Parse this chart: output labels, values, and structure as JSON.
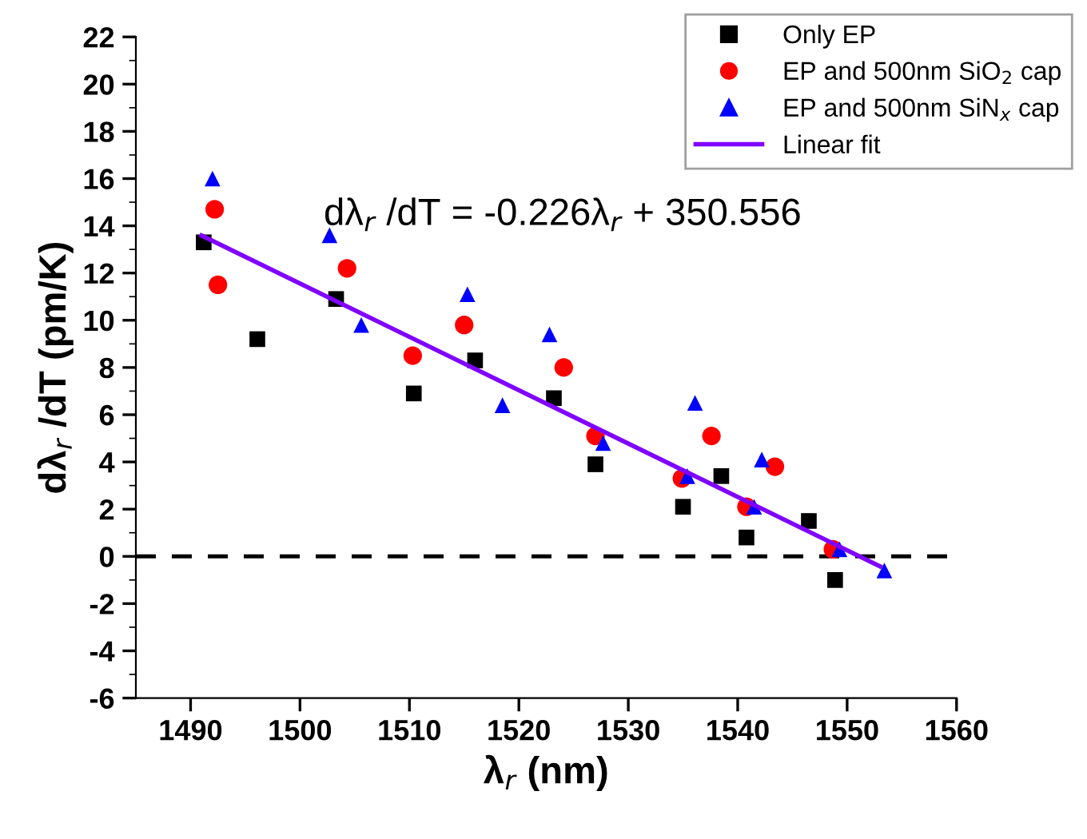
{
  "chart_data": {
    "type": "scatter",
    "xlabel": "λ$_{r}$ (nm)",
    "ylabel": "dλ$_{r}$ /dT (pm/K)",
    "xlim": [
      1485,
      1560
    ],
    "xticks": [
      1490,
      1500,
      1510,
      1520,
      1530,
      1540,
      1550,
      1560
    ],
    "ylim": [
      -6,
      22
    ],
    "yticks": [
      -6,
      -4,
      -2,
      0,
      2,
      4,
      6,
      8,
      10,
      12,
      14,
      16,
      18,
      20,
      22
    ],
    "legend": "top right",
    "grid": false,
    "annotations": [
      "dλ$_{r}$ /dT = -0.226λ$_{r}$ + 350.556"
    ],
    "ref_lines": [
      {
        "axis": "y",
        "value": 0,
        "color": "#000000",
        "line_style": "dashed"
      }
    ],
    "series": [
      {
        "name": "Only EP",
        "color": "#000000",
        "marker": "square",
        "x": [
          1491.2,
          1496.1,
          1503.3,
          1510.4,
          1516.0,
          1523.2,
          1527.0,
          1535.0,
          1538.5,
          1540.8,
          1546.5,
          1548.9
        ],
        "values": [
          13.3,
          9.2,
          10.9,
          6.9,
          8.3,
          6.7,
          3.9,
          2.1,
          3.4,
          0.8,
          1.5,
          -1.0
        ]
      },
      {
        "name": "EP and 500nm SiO$_{2}$ cap",
        "color": "#ff0000",
        "marker": "circle",
        "x": [
          1492.2,
          1492.5,
          1504.3,
          1510.3,
          1515.0,
          1524.1,
          1527.0,
          1534.9,
          1537.6,
          1540.8,
          1543.4,
          1548.7
        ],
        "values": [
          14.7,
          11.5,
          12.2,
          8.5,
          9.8,
          8.0,
          5.1,
          3.3,
          5.1,
          2.1,
          3.8,
          0.3
        ]
      },
      {
        "name": "EP and 500nm SiN$_{x}$ cap",
        "color": "#0000ff",
        "marker": "triangle",
        "x": [
          1492.0,
          1502.7,
          1505.6,
          1515.3,
          1518.5,
          1522.8,
          1527.7,
          1535.4,
          1536.1,
          1541.5,
          1542.2,
          1549.3,
          1553.4
        ],
        "values": [
          16.0,
          13.6,
          9.8,
          11.1,
          6.4,
          9.4,
          4.8,
          3.4,
          6.5,
          2.1,
          4.1,
          0.3,
          -0.6
        ]
      },
      {
        "name": "Linear fit",
        "type": "line",
        "color": "#8000ff",
        "marker": "none",
        "line_style": "solid",
        "x": [
          1491,
          1553
        ],
        "values": [
          13.59,
          -0.42
        ]
      }
    ]
  }
}
